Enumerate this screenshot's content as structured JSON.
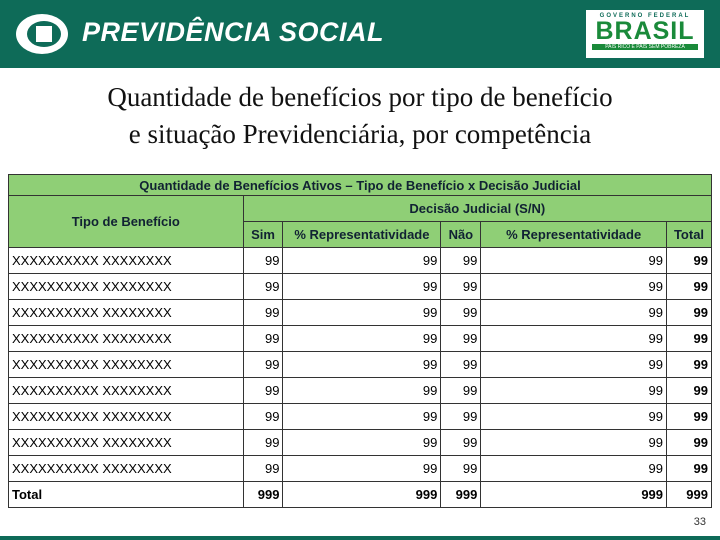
{
  "header": {
    "brand": "PREVIDÊNCIA SOCIAL",
    "gov_top": "GOVERNO FEDERAL",
    "gov_name": "BRASIL",
    "gov_slogan": "PAÍS RICO É PAÍS SEM POBREZA"
  },
  "title": [
    "Quantidade de benefícios por tipo de benefício",
    "e situação Previdenciária, por competência"
  ],
  "table": {
    "title": "Quantidade de Benefícios Ativos – Tipo de Benefício x Decisão Judicial",
    "type_header": "Tipo de Benefício",
    "group_header": "Decisão Judicial (S/N)",
    "columns": [
      "Sim",
      "% Representatividade",
      "Não",
      "% Representatividade",
      "Total"
    ],
    "rows": [
      [
        "XXXXXXXXXX XXXXXXXX",
        99,
        99,
        99,
        99,
        99
      ],
      [
        "XXXXXXXXXX XXXXXXXX",
        99,
        99,
        99,
        99,
        99
      ],
      [
        "XXXXXXXXXX XXXXXXXX",
        99,
        99,
        99,
        99,
        99
      ],
      [
        "XXXXXXXXXX XXXXXXXX",
        99,
        99,
        99,
        99,
        99
      ],
      [
        "XXXXXXXXXX XXXXXXXX",
        99,
        99,
        99,
        99,
        99
      ],
      [
        "XXXXXXXXXX XXXXXXXX",
        99,
        99,
        99,
        99,
        99
      ],
      [
        "XXXXXXXXXX XXXXXXXX",
        99,
        99,
        99,
        99,
        99
      ],
      [
        "XXXXXXXXXX XXXXXXXX",
        99,
        99,
        99,
        99,
        99
      ],
      [
        "XXXXXXXXXX XXXXXXXX",
        99,
        99,
        99,
        99,
        99
      ]
    ],
    "total": [
      "Total",
      999,
      999,
      999,
      999,
      999
    ]
  },
  "page_number": "33"
}
